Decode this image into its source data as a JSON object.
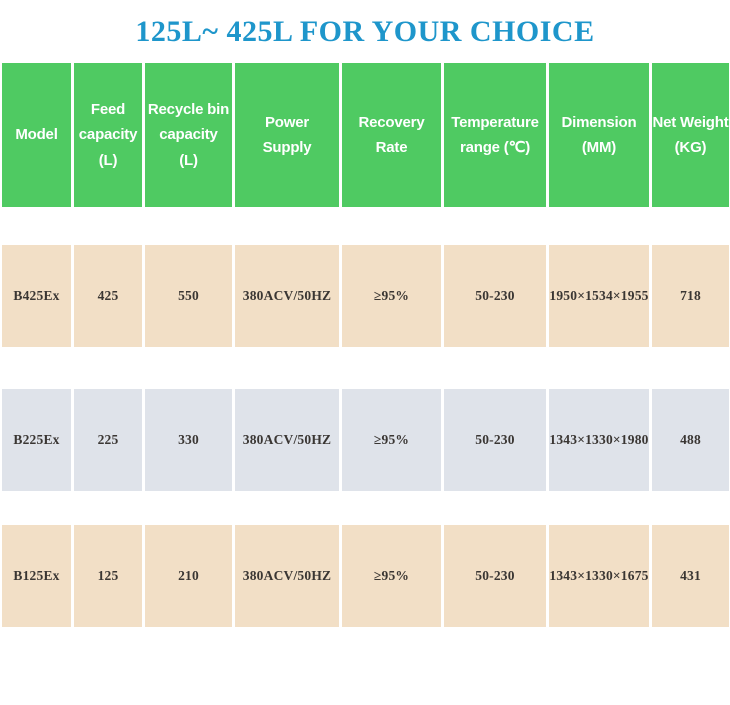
{
  "page": {
    "title": "125L~ 425L FOR YOUR CHOICE"
  },
  "colors": {
    "title-blue": "#1e96cb",
    "header-green": "#4fca62",
    "row-tan": "#f2dfc6",
    "row-gray": "#dfe3ea",
    "cell-text": "#3a3633"
  },
  "table": {
    "headers": [
      "Model",
      "Feed\ncapacity\n(L)",
      "Recycle bin\ncapacity\n(L)",
      "Power\nSupply",
      "Recovery\nRate",
      "Temperature\nrange (℃)",
      "Dimension\n(MM)",
      "Net Weight\n(KG)"
    ],
    "rows": [
      [
        "B425Ex",
        "425",
        "550",
        "380ACV/50HZ",
        "≥95%",
        "50-230",
        "1950×1534×1955",
        "718"
      ],
      [
        "B225Ex",
        "225",
        "330",
        "380ACV/50HZ",
        "≥95%",
        "50-230",
        "1343×1330×1980",
        "488"
      ],
      [
        "B125Ex",
        "125",
        "210",
        "380ACV/50HZ",
        "≥95%",
        "50-230",
        "1343×1330×1675",
        "431"
      ]
    ]
  }
}
